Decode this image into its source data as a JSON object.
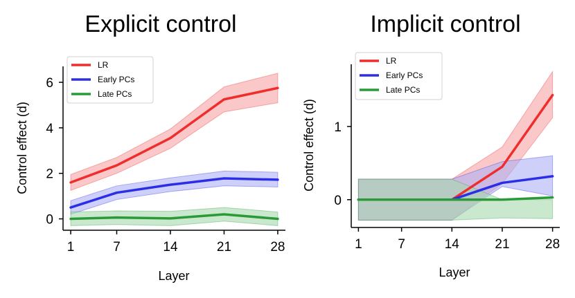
{
  "chart_data": [
    {
      "type": "line",
      "title": "Explicit control",
      "xlabel": "Layer",
      "ylabel": "Control effect (d)",
      "x": [
        1,
        7,
        14,
        21,
        28
      ],
      "xticks": [
        "1",
        "7",
        "14",
        "21",
        "28"
      ],
      "yticks": [
        "0",
        "2",
        "4",
        "6"
      ],
      "ytick_values": [
        0,
        2,
        4,
        6
      ],
      "xlim": [
        0,
        29
      ],
      "ylim": [
        -0.5,
        6.7
      ],
      "legend_position": "top-left",
      "series": [
        {
          "name": "LR",
          "color": "#ef2d2d",
          "band_color": "#f7a3a3",
          "values": [
            1.6,
            2.35,
            3.55,
            5.25,
            5.75
          ],
          "lower": [
            1.25,
            2.0,
            3.1,
            4.7,
            5.1
          ],
          "upper": [
            1.95,
            2.7,
            3.95,
            5.8,
            6.4
          ]
        },
        {
          "name": "Early PCs",
          "color": "#2a2ee6",
          "band_color": "#aeb0f5",
          "values": [
            0.5,
            1.15,
            1.5,
            1.78,
            1.72
          ],
          "lower": [
            0.2,
            0.85,
            1.2,
            1.45,
            1.4
          ],
          "upper": [
            0.8,
            1.45,
            1.8,
            2.1,
            2.05
          ]
        },
        {
          "name": "Late PCs",
          "color": "#2a9a38",
          "band_color": "#a6d8ad",
          "values": [
            0.0,
            0.06,
            0.02,
            0.2,
            0.0
          ],
          "lower": [
            -0.3,
            -0.25,
            -0.3,
            -0.1,
            -0.3
          ],
          "upper": [
            0.3,
            0.35,
            0.33,
            0.5,
            0.3
          ]
        }
      ]
    },
    {
      "type": "line",
      "title": "Implicit control",
      "xlabel": "Layer",
      "ylabel": "Control effect (d)",
      "x": [
        1,
        7,
        14,
        21,
        28
      ],
      "xticks": [
        "1",
        "7",
        "14",
        "21",
        "28"
      ],
      "yticks": [
        "0",
        "1"
      ],
      "ytick_values": [
        0,
        1
      ],
      "xlim": [
        0,
        29
      ],
      "ylim": [
        -0.38,
        1.85
      ],
      "legend_position": "top-left",
      "series": [
        {
          "name": "LR",
          "color": "#ef2d2d",
          "band_color": "#f7a3a3",
          "values": [
            0.0,
            0.0,
            0.0,
            0.45,
            1.43
          ],
          "lower": [
            -0.28,
            -0.28,
            -0.28,
            0.22,
            1.12
          ],
          "upper": [
            0.28,
            0.28,
            0.28,
            0.72,
            1.75
          ]
        },
        {
          "name": "Early PCs",
          "color": "#2a2ee6",
          "band_color": "#aeb0f5",
          "values": [
            0.0,
            0.0,
            0.0,
            0.23,
            0.32
          ],
          "lower": [
            -0.28,
            -0.28,
            -0.28,
            0.18,
            0.05
          ],
          "upper": [
            0.28,
            0.28,
            0.28,
            0.52,
            0.6
          ]
        },
        {
          "name": "Late PCs",
          "color": "#2a9a38",
          "band_color": "#a6d8ad",
          "values": [
            0.0,
            0.0,
            0.0,
            0.0,
            0.03
          ],
          "lower": [
            -0.28,
            -0.28,
            -0.28,
            -0.25,
            -0.26
          ],
          "upper": [
            0.28,
            0.28,
            0.28,
            0.0,
            0.0
          ]
        }
      ]
    }
  ]
}
